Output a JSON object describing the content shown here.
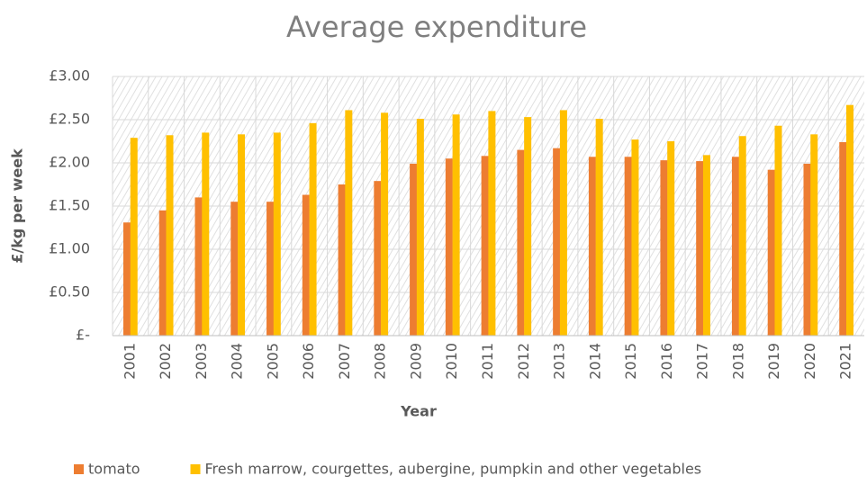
{
  "chart_data": {
    "type": "bar",
    "title": "Average expenditure",
    "x_label": "Year",
    "y_label": "£/kg per week",
    "categories": [
      "2001",
      "2002",
      "2003",
      "2004",
      "2005",
      "2006",
      "2007",
      "2008",
      "2009",
      "2010",
      "2011",
      "2012",
      "2013",
      "2014",
      "2015",
      "2016",
      "2017",
      "2018",
      "2019",
      "2020",
      "2021"
    ],
    "series": [
      {
        "name": "tomato",
        "color": "#ed7d31",
        "values": [
          1.31,
          1.45,
          1.6,
          1.55,
          1.55,
          1.63,
          1.75,
          1.79,
          1.99,
          2.05,
          2.08,
          2.15,
          2.17,
          2.07,
          2.07,
          2.03,
          2.02,
          2.07,
          1.92,
          1.99,
          2.24
        ]
      },
      {
        "name": "Fresh marrow, courgettes, aubergine, pumpkin and other vegetables",
        "color": "#ffc000",
        "values": [
          2.29,
          2.32,
          2.35,
          2.33,
          2.35,
          2.46,
          2.61,
          2.58,
          2.51,
          2.56,
          2.6,
          2.53,
          2.61,
          2.51,
          2.27,
          2.25,
          2.09,
          2.31,
          2.43,
          2.33,
          2.67
        ]
      }
    ],
    "ylim": [
      0,
      3
    ],
    "yticks": [
      {
        "value": 0,
        "label": "£-"
      },
      {
        "value": 0.5,
        "label": "£0.50"
      },
      {
        "value": 1,
        "label": "£1.00"
      },
      {
        "value": 1.5,
        "label": "£1.50"
      },
      {
        "value": 2,
        "label": "£2.00"
      },
      {
        "value": 2.5,
        "label": "£2.50"
      },
      {
        "value": 3,
        "label": "£3.00"
      }
    ],
    "grid": true,
    "legend": "bottom"
  }
}
